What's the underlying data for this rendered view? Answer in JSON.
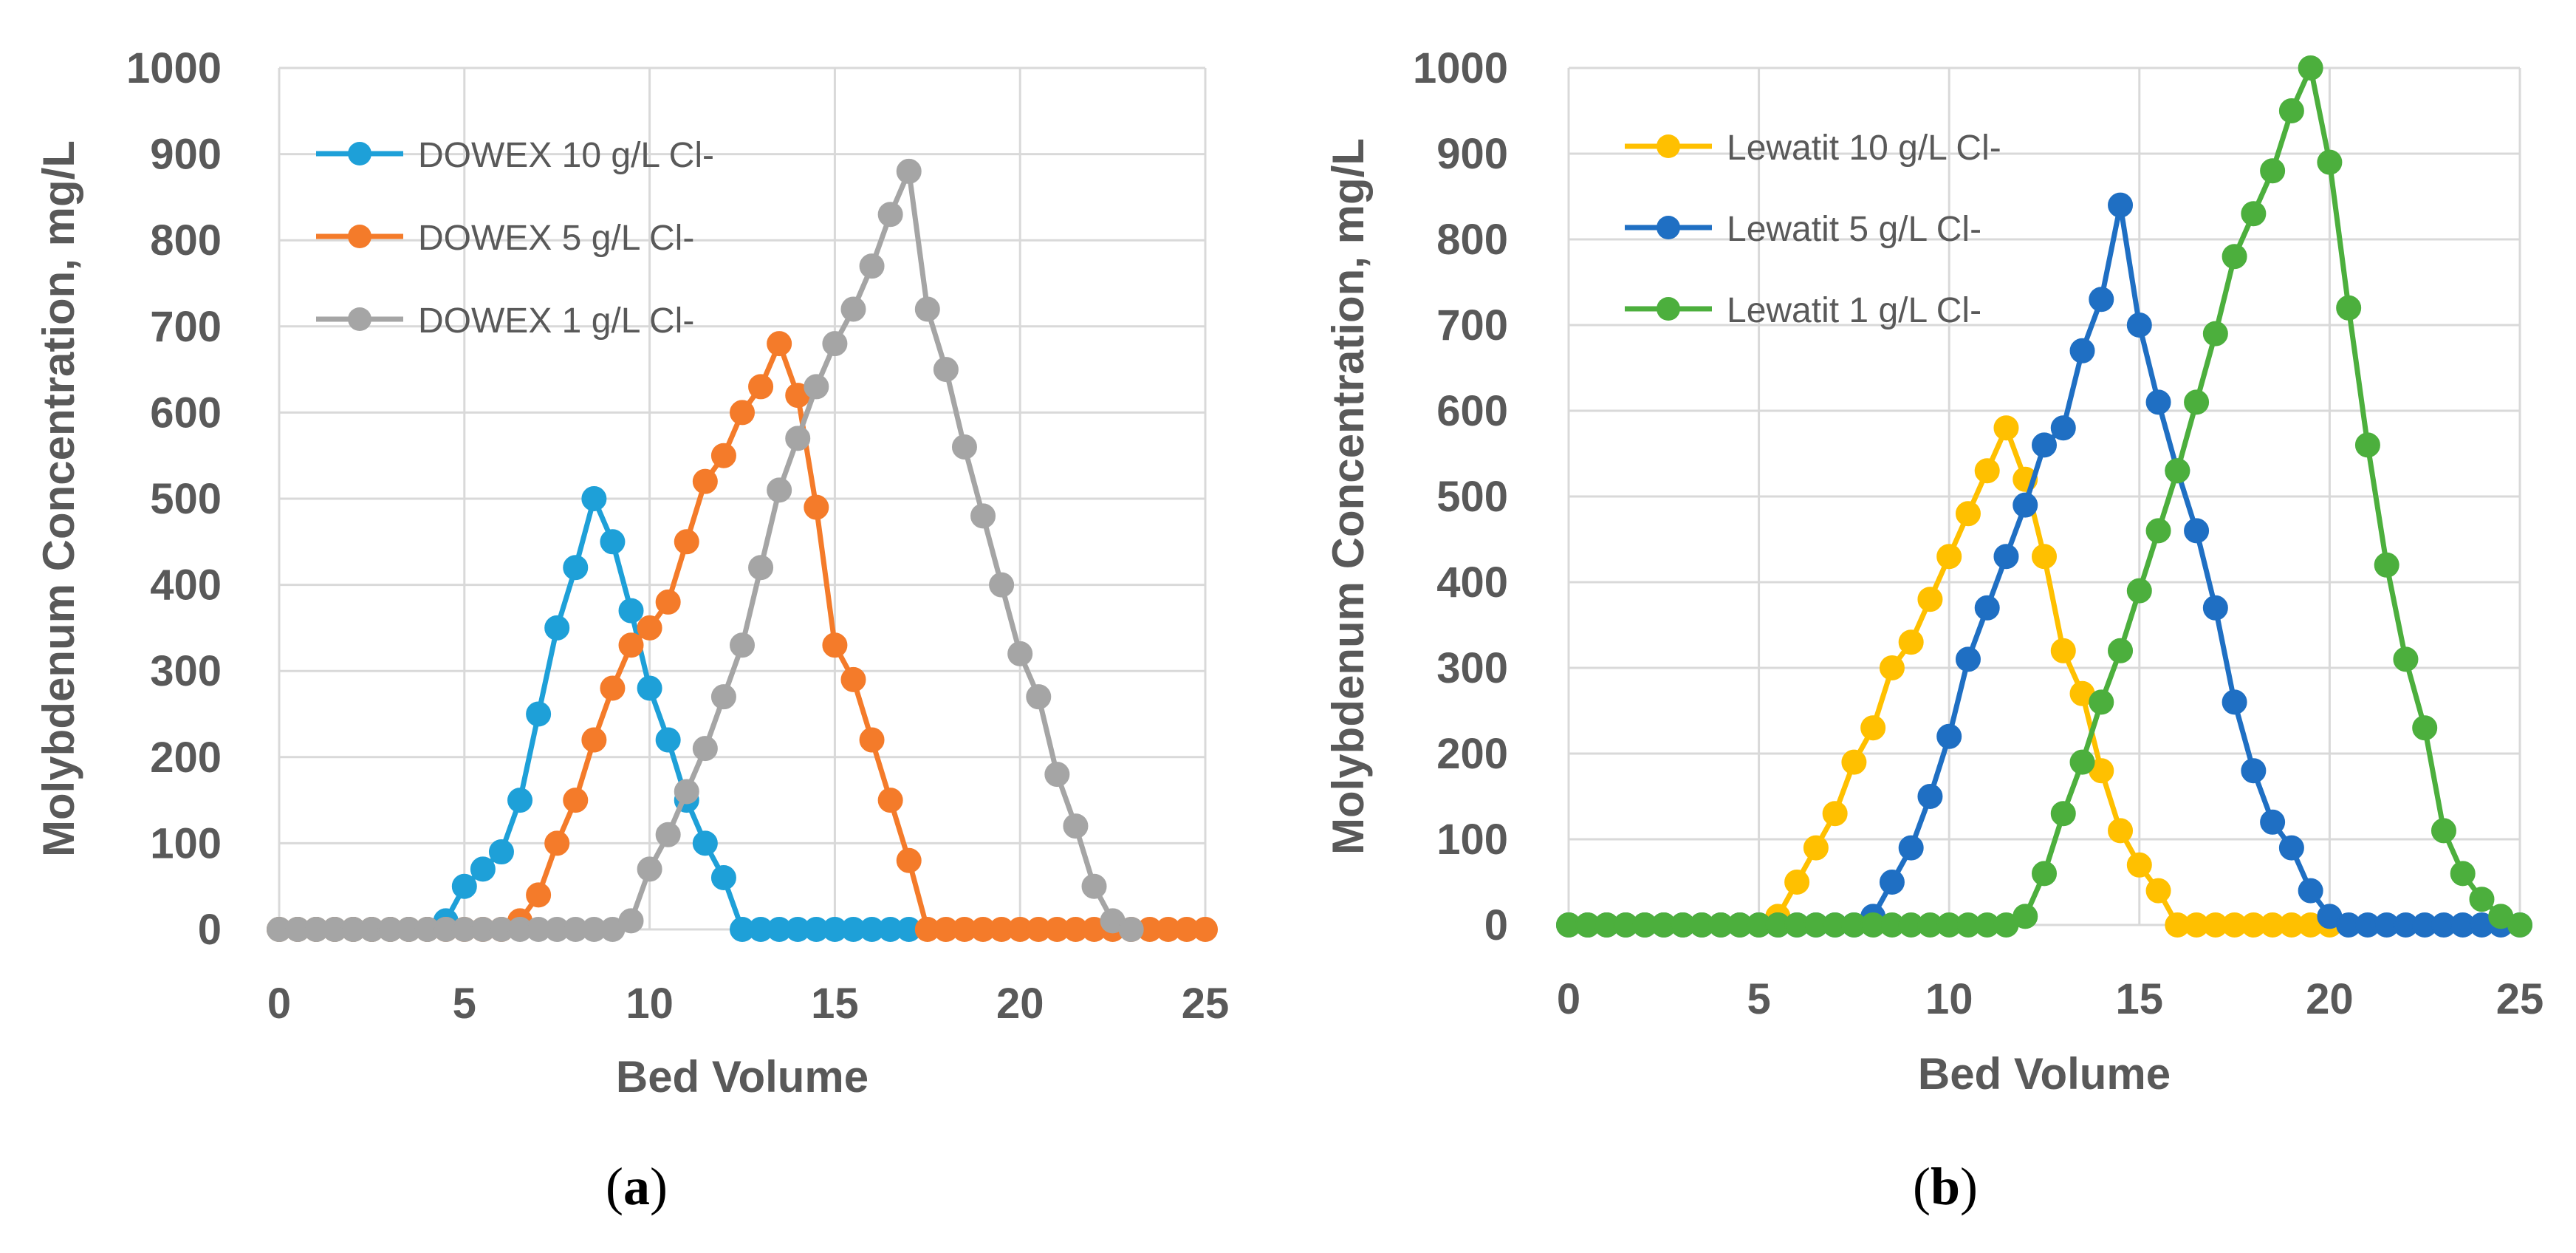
{
  "chart_data": [
    {
      "type": "line",
      "panel_label": "a",
      "title": "",
      "xlabel": "Bed Volume",
      "ylabel": "Molybdenum Concentration, mg/L",
      "xlim": [
        0,
        25
      ],
      "ylim": [
        0,
        1000
      ],
      "xticks": [
        0,
        5,
        10,
        15,
        20,
        25
      ],
      "yticks": [
        0,
        100,
        200,
        300,
        400,
        500,
        600,
        700,
        800,
        900,
        1000
      ],
      "grid": true,
      "legend_position": "top-left",
      "markers": true,
      "series": [
        {
          "name": "DOWEX 10 g/L Cl-",
          "color": "#1EA0D8",
          "x": [
            0,
            0.5,
            1,
            1.5,
            2,
            2.5,
            3,
            3.5,
            4,
            4.5,
            5,
            5.5,
            6,
            6.5,
            7,
            7.5,
            8,
            8.5,
            9,
            9.5,
            10,
            10.5,
            11,
            11.5,
            12,
            12.5,
            13,
            13.5,
            14,
            14.5,
            15,
            15.5,
            16,
            16.5,
            17
          ],
          "y": [
            0,
            0,
            0,
            0,
            0,
            0,
            0,
            0,
            0,
            10,
            50,
            70,
            90,
            150,
            250,
            350,
            420,
            500,
            450,
            370,
            280,
            220,
            150,
            100,
            60,
            0,
            0,
            0,
            0,
            0,
            0,
            0,
            0,
            0,
            0
          ]
        },
        {
          "name": "DOWEX 5 g/L Cl-",
          "color": "#F47B2A",
          "x": [
            0,
            0.5,
            1,
            1.5,
            2,
            2.5,
            3,
            3.5,
            4,
            4.5,
            5,
            5.5,
            6,
            6.5,
            7,
            7.5,
            8,
            8.5,
            9,
            9.5,
            10,
            10.5,
            11,
            11.5,
            12,
            12.5,
            13,
            13.5,
            14,
            14.5,
            15,
            15.5,
            16,
            16.5,
            17,
            17.5,
            18,
            18.5,
            19,
            19.5,
            20,
            20.5,
            21,
            21.5,
            22,
            22.5,
            23,
            23.5,
            24,
            24.5,
            25
          ],
          "y": [
            0,
            0,
            0,
            0,
            0,
            0,
            0,
            0,
            0,
            0,
            0,
            0,
            0,
            10,
            40,
            100,
            150,
            220,
            280,
            330,
            350,
            380,
            450,
            520,
            550,
            600,
            630,
            680,
            620,
            490,
            330,
            290,
            220,
            150,
            80,
            0,
            0,
            0,
            0,
            0,
            0,
            0,
            0,
            0,
            0,
            0,
            0,
            0,
            0,
            0,
            0
          ]
        },
        {
          "name": "DOWEX 1 g/L Cl-",
          "color": "#A5A5A5",
          "x": [
            0,
            0.5,
            1,
            1.5,
            2,
            2.5,
            3,
            3.5,
            4,
            4.5,
            5,
            5.5,
            6,
            6.5,
            7,
            7.5,
            8,
            8.5,
            9,
            9.5,
            10,
            10.5,
            11,
            11.5,
            12,
            12.5,
            13,
            13.5,
            14,
            14.5,
            15,
            15.5,
            16,
            16.5,
            17,
            17.5,
            18,
            18.5,
            19,
            19.5,
            20,
            20.5,
            21,
            21.5,
            22,
            22.5,
            23
          ],
          "y": [
            0,
            0,
            0,
            0,
            0,
            0,
            0,
            0,
            0,
            0,
            0,
            0,
            0,
            0,
            0,
            0,
            0,
            0,
            0,
            10,
            70,
            110,
            160,
            210,
            270,
            330,
            420,
            510,
            570,
            630,
            680,
            720,
            770,
            830,
            880,
            720,
            650,
            560,
            480,
            400,
            320,
            270,
            180,
            120,
            50,
            10,
            0
          ]
        }
      ]
    },
    {
      "type": "line",
      "panel_label": "b",
      "title": "",
      "xlabel": "Bed Volume",
      "ylabel": "Molybdenum Concentration, mg/L",
      "xlim": [
        0,
        25
      ],
      "ylim": [
        0,
        1000
      ],
      "xticks": [
        0,
        5,
        10,
        15,
        20,
        25
      ],
      "yticks": [
        0,
        100,
        200,
        300,
        400,
        500,
        600,
        700,
        800,
        900,
        1000
      ],
      "grid": true,
      "legend_position": "top-left",
      "markers": true,
      "series": [
        {
          "name": "Lewatit 10 g/L Cl-",
          "color": "#FFC000",
          "x": [
            0,
            0.5,
            1,
            1.5,
            2,
            2.5,
            3,
            3.5,
            4,
            4.5,
            5,
            5.5,
            6,
            6.5,
            7,
            7.5,
            8,
            8.5,
            9,
            9.5,
            10,
            10.5,
            11,
            11.5,
            12,
            12.5,
            13,
            13.5,
            14,
            14.5,
            15,
            15.5,
            16,
            16.5,
            17,
            17.5,
            18,
            18.5,
            19,
            19.5,
            20
          ],
          "y": [
            0,
            0,
            0,
            0,
            0,
            0,
            0,
            0,
            0,
            0,
            0,
            10,
            50,
            90,
            130,
            190,
            230,
            300,
            330,
            380,
            430,
            480,
            530,
            580,
            520,
            430,
            320,
            270,
            180,
            110,
            70,
            40,
            0,
            0,
            0,
            0,
            0,
            0,
            0,
            0,
            0
          ]
        },
        {
          "name": "Lewatit 5 g/L Cl-",
          "color": "#1F6FC3",
          "x": [
            0,
            0.5,
            1,
            1.5,
            2,
            2.5,
            3,
            3.5,
            4,
            4.5,
            5,
            5.5,
            6,
            6.5,
            7,
            7.5,
            8,
            8.5,
            9,
            9.5,
            10,
            10.5,
            11,
            11.5,
            12,
            12.5,
            13,
            13.5,
            14,
            14.5,
            15,
            15.5,
            16,
            16.5,
            17,
            17.5,
            18,
            18.5,
            19,
            19.5,
            20,
            20.5,
            21,
            21.5,
            22,
            22.5,
            23,
            23.5,
            24,
            24.5,
            25
          ],
          "y": [
            0,
            0,
            0,
            0,
            0,
            0,
            0,
            0,
            0,
            0,
            0,
            0,
            0,
            0,
            0,
            0,
            10,
            50,
            90,
            150,
            220,
            310,
            370,
            430,
            490,
            560,
            580,
            670,
            730,
            840,
            700,
            610,
            530,
            460,
            370,
            260,
            180,
            120,
            90,
            40,
            10,
            0,
            0,
            0,
            0,
            0,
            0,
            0,
            0,
            0,
            0
          ]
        },
        {
          "name": "Lewatit 1 g/L Cl-",
          "color": "#4CAF3D",
          "x": [
            0,
            0.5,
            1,
            1.5,
            2,
            2.5,
            3,
            3.5,
            4,
            4.5,
            5,
            5.5,
            6,
            6.5,
            7,
            7.5,
            8,
            8.5,
            9,
            9.5,
            10,
            10.5,
            11,
            11.5,
            12,
            12.5,
            13,
            13.5,
            14,
            14.5,
            15,
            15.5,
            16,
            16.5,
            17,
            17.5,
            18,
            18.5,
            19,
            19.5,
            20,
            20.5,
            21,
            21.5,
            22,
            22.5,
            23,
            23.5,
            24,
            24.5,
            25
          ],
          "y": [
            0,
            0,
            0,
            0,
            0,
            0,
            0,
            0,
            0,
            0,
            0,
            0,
            0,
            0,
            0,
            0,
            0,
            0,
            0,
            0,
            0,
            0,
            0,
            0,
            10,
            60,
            130,
            190,
            260,
            320,
            390,
            460,
            530,
            610,
            690,
            780,
            830,
            880,
            950,
            1000,
            890,
            720,
            560,
            420,
            310,
            230,
            110,
            60,
            30,
            10,
            0
          ]
        }
      ]
    }
  ]
}
